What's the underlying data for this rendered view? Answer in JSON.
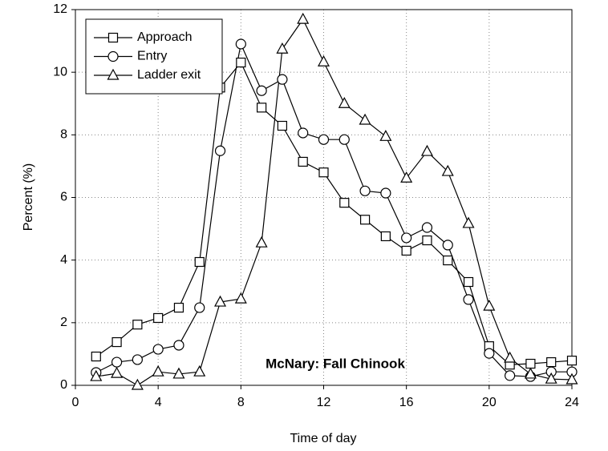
{
  "chart_data": {
    "type": "line",
    "xlabel": "Time of day",
    "ylabel": "Percent (%)",
    "annotation": "McNary: Fall Chinook",
    "x": [
      1,
      2,
      3,
      4,
      5,
      6,
      7,
      8,
      9,
      10,
      11,
      12,
      13,
      14,
      15,
      16,
      17,
      18,
      19,
      20,
      21,
      22,
      23,
      24
    ],
    "series": [
      {
        "name": "Approach",
        "color": "#000000",
        "marker": "square",
        "values": [
          0.92,
          1.38,
          1.94,
          2.15,
          2.48,
          3.94,
          9.51,
          10.31,
          8.87,
          8.29,
          7.14,
          6.8,
          5.83,
          5.29,
          4.76,
          4.3,
          4.63,
          3.99,
          3.3,
          1.25,
          0.66,
          0.69,
          0.74,
          0.79
        ]
      },
      {
        "name": "Entry",
        "color": "#000000",
        "marker": "circle",
        "values": [
          0.41,
          0.74,
          0.82,
          1.15,
          1.28,
          2.48,
          7.49,
          10.9,
          9.41,
          9.77,
          8.06,
          7.85,
          7.85,
          6.21,
          6.14,
          4.71,
          5.04,
          4.48,
          2.74,
          1.02,
          0.31,
          0.28,
          0.43,
          0.43
        ]
      },
      {
        "name": "Ladder exit",
        "color": "#000000",
        "marker": "triangle",
        "values": [
          0.28,
          0.38,
          0,
          0.43,
          0.36,
          0.43,
          2.66,
          2.76,
          4.55,
          10.74,
          11.69,
          10.33,
          9.0,
          8.47,
          7.95,
          6.62,
          7.47,
          6.83,
          5.17,
          2.53,
          0.87,
          0.36,
          0.2,
          0.18
        ]
      }
    ],
    "xlim": [
      0,
      24
    ],
    "xticks": [
      0,
      4,
      8,
      12,
      16,
      20,
      24
    ],
    "ylim": [
      0,
      12
    ],
    "yticks": [
      0,
      2,
      4,
      6,
      8,
      10,
      12
    ],
    "grid": true,
    "legend": "upper left"
  }
}
